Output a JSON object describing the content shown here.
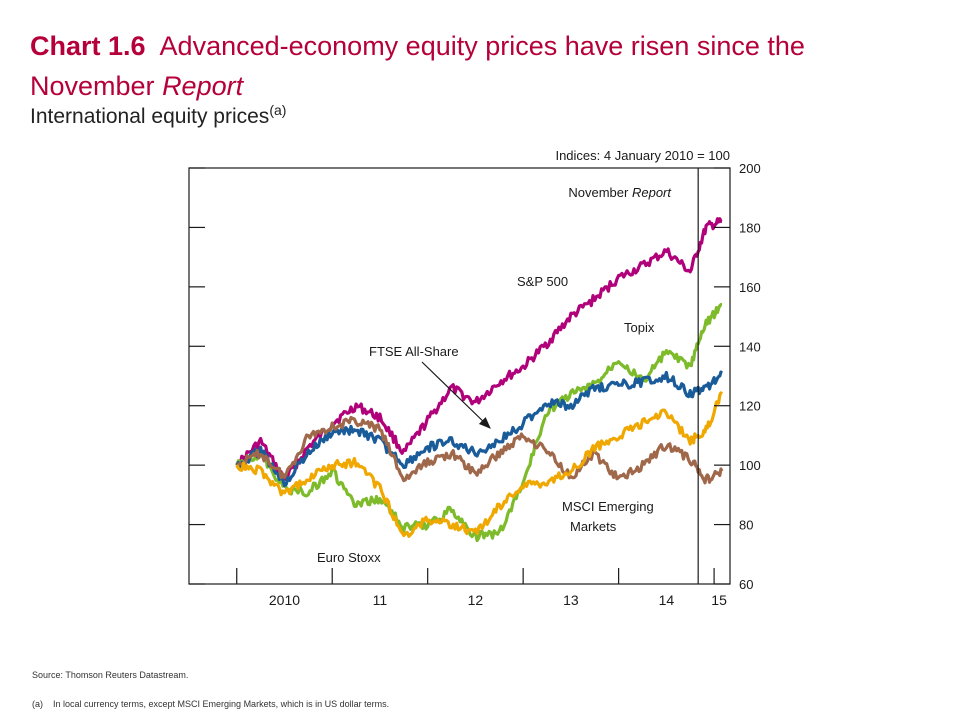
{
  "title": {
    "number": "Chart 1.6",
    "text_pre": "Advanced-economy equity prices have risen since the November",
    "text_italic": "Report"
  },
  "subtitle": {
    "text": "International equity prices",
    "note_ref": "(a)"
  },
  "chart_data": {
    "type": "line",
    "y_label": "Indices: 4 January 2010 = 100",
    "ylim": [
      60,
      200
    ],
    "y_ticks": [
      60,
      80,
      100,
      120,
      140,
      160,
      180,
      200
    ],
    "x_ticks": [
      "2010",
      "11",
      "12",
      "13",
      "14",
      "15"
    ],
    "xlim": [
      "2009-07",
      "2015-03"
    ],
    "vline": {
      "x": "2014-11",
      "label_pre": "November",
      "label_italic": "Report"
    },
    "annotations": [
      "S&P 500",
      "Topix",
      "FTSE All-Share",
      "MSCI Emerging",
      "Markets",
      "Euro Stoxx"
    ],
    "series": [
      {
        "name": "S&P 500",
        "color": "#b0007a",
        "x": [
          "2010-01",
          "2010-04",
          "2010-07",
          "2010-10",
          "2011-01",
          "2011-04",
          "2011-07",
          "2011-10",
          "2012-01",
          "2012-04",
          "2012-07",
          "2012-10",
          "2013-01",
          "2013-04",
          "2013-07",
          "2013-10",
          "2014-01",
          "2014-04",
          "2014-07",
          "2014-10",
          "2014-12",
          "2015-02"
        ],
        "values": [
          100,
          108,
          95,
          106,
          114,
          120,
          116,
          104,
          115,
          126,
          121,
          128,
          133,
          141,
          150,
          156,
          163,
          167,
          172,
          165,
          180,
          182
        ]
      },
      {
        "name": "Topix",
        "color": "#7dbb2a",
        "x": [
          "2010-01",
          "2010-04",
          "2010-07",
          "2010-10",
          "2011-01",
          "2011-04",
          "2011-07",
          "2011-10",
          "2012-01",
          "2012-04",
          "2012-07",
          "2012-10",
          "2013-01",
          "2013-04",
          "2013-07",
          "2013-10",
          "2014-01",
          "2014-04",
          "2014-07",
          "2014-10",
          "2014-12",
          "2015-02"
        ],
        "values": [
          100,
          104,
          92,
          91,
          98,
          86,
          89,
          79,
          80,
          85,
          76,
          77,
          94,
          118,
          124,
          127,
          136,
          128,
          138,
          133,
          148,
          154
        ]
      },
      {
        "name": "FTSE All-Share",
        "color": "#1a5b9a",
        "x": [
          "2010-01",
          "2010-04",
          "2010-07",
          "2010-10",
          "2011-01",
          "2011-04",
          "2011-07",
          "2011-10",
          "2012-01",
          "2012-04",
          "2012-07",
          "2012-10",
          "2013-01",
          "2013-04",
          "2013-07",
          "2013-10",
          "2014-01",
          "2014-04",
          "2014-07",
          "2014-10",
          "2014-12",
          "2015-02"
        ],
        "values": [
          100,
          105,
          94,
          104,
          111,
          112,
          108,
          100,
          106,
          108,
          104,
          108,
          114,
          121,
          120,
          126,
          127,
          128,
          130,
          124,
          126,
          131
        ]
      },
      {
        "name": "MSCI Emerging Markets",
        "color": "#a0684a",
        "x": [
          "2010-01",
          "2010-04",
          "2010-07",
          "2010-10",
          "2011-01",
          "2011-04",
          "2011-07",
          "2011-10",
          "2012-01",
          "2012-04",
          "2012-07",
          "2012-10",
          "2013-01",
          "2013-04",
          "2013-07",
          "2013-10",
          "2014-01",
          "2014-04",
          "2014-07",
          "2014-10",
          "2014-12",
          "2015-02"
        ],
        "values": [
          100,
          104,
          96,
          110,
          113,
          115,
          112,
          95,
          101,
          104,
          97,
          104,
          110,
          105,
          96,
          104,
          95,
          100,
          107,
          102,
          95,
          98
        ]
      },
      {
        "name": "Euro Stoxx",
        "color": "#f0a800",
        "x": [
          "2010-01",
          "2010-04",
          "2010-07",
          "2010-10",
          "2011-01",
          "2011-04",
          "2011-07",
          "2011-10",
          "2012-01",
          "2012-04",
          "2012-07",
          "2012-10",
          "2013-01",
          "2013-04",
          "2013-07",
          "2013-10",
          "2014-01",
          "2014-04",
          "2014-07",
          "2014-10",
          "2014-12",
          "2015-02"
        ],
        "values": [
          100,
          98,
          90,
          96,
          100,
          101,
          92,
          76,
          82,
          80,
          77,
          86,
          93,
          94,
          98,
          106,
          110,
          114,
          118,
          108,
          112,
          124
        ]
      }
    ]
  },
  "source": "Source: Thomson Reuters Datastream.",
  "footnote": {
    "tag": "(a)",
    "text": "In local currency terms, except MSCI Emerging Markets, which is in US dollar terms."
  }
}
